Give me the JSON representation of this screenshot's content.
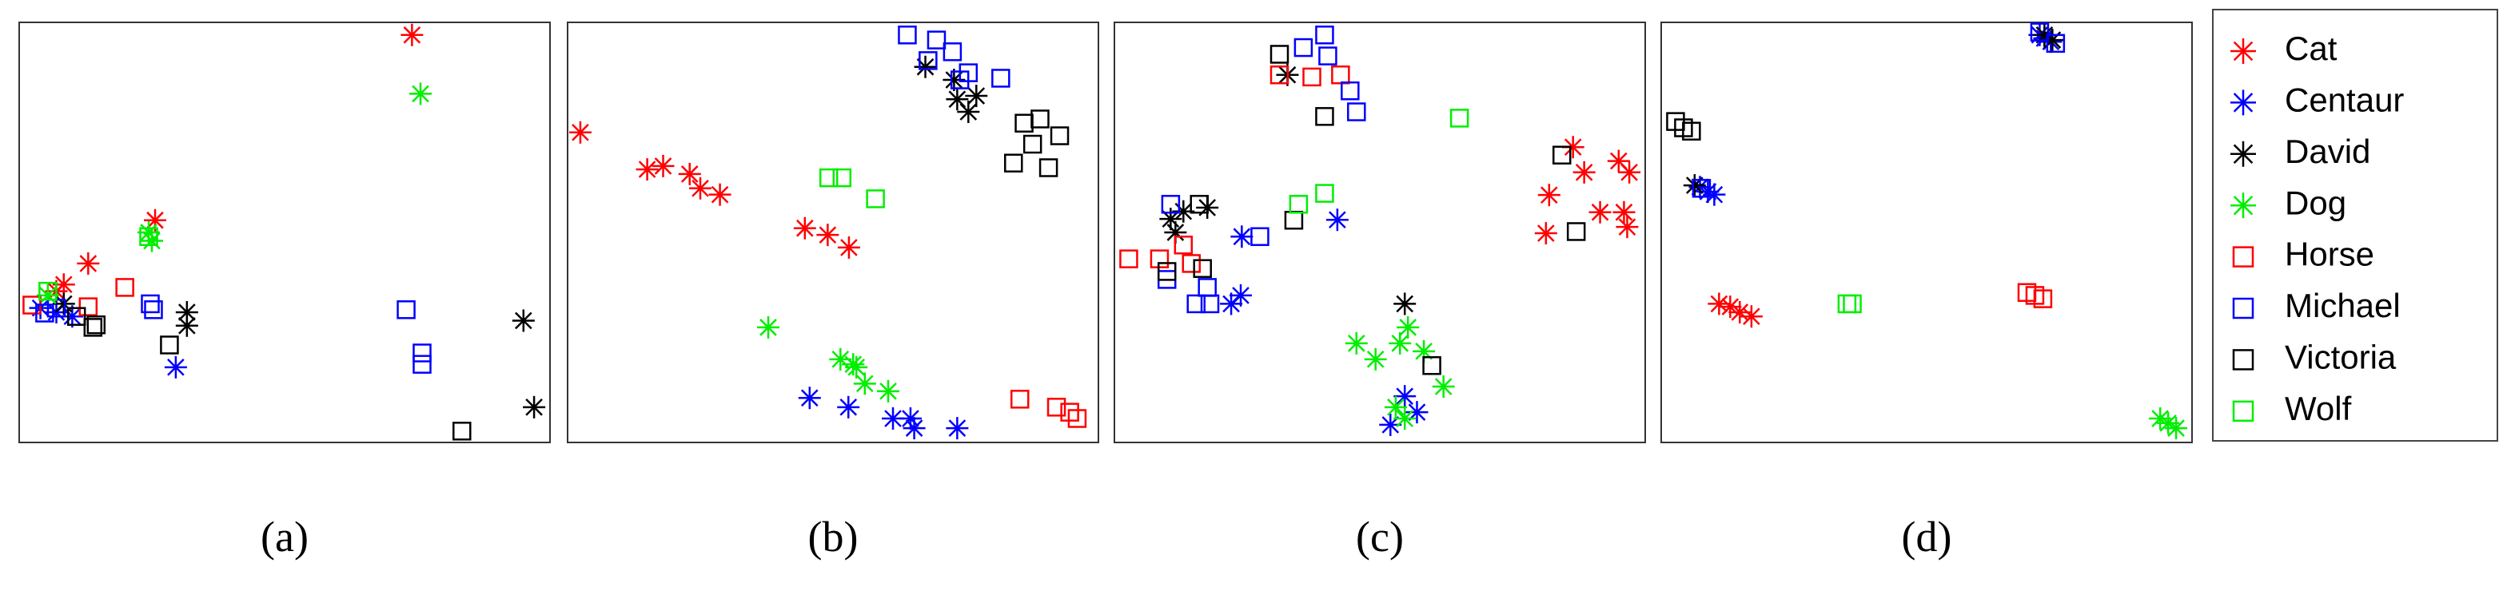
{
  "legend": [
    {
      "name": "Cat",
      "color": "#ff0000",
      "marker": "star"
    },
    {
      "name": "Centaur",
      "color": "#0000ff",
      "marker": "star"
    },
    {
      "name": "David",
      "color": "#000000",
      "marker": "star"
    },
    {
      "name": "Dog",
      "color": "#00ee00",
      "marker": "star"
    },
    {
      "name": "Horse",
      "color": "#ff0000",
      "marker": "square"
    },
    {
      "name": "Michael",
      "color": "#0000ff",
      "marker": "square"
    },
    {
      "name": "Victoria",
      "color": "#000000",
      "marker": "square"
    },
    {
      "name": "Wolf",
      "color": "#00ee00",
      "marker": "square"
    }
  ],
  "chart_data": [
    {
      "type": "scatter",
      "label": "(a)",
      "xlim": [
        0,
        100
      ],
      "ylim": [
        0,
        100
      ],
      "series": [
        {
          "x": [
            74,
            25.6,
            13,
            8.4,
            7
          ],
          "y": [
            97,
            52.9,
            42.6,
            37.6,
            36
          ]
        },
        {
          "x": [
            29.5,
            10,
            4,
            7
          ],
          "y": [
            17.9,
            30,
            32,
            31
          ]
        },
        {
          "x": [
            95,
            97,
            31.6,
            31.6,
            8.4
          ],
          "y": [
            29,
            8.4,
            31,
            27.8,
            33
          ]
        },
        {
          "x": [
            75.6,
            24.4,
            25,
            5.4
          ],
          "y": [
            83,
            50,
            48,
            35
          ]
        },
        {
          "x": [
            2.4,
            19.9,
            13
          ],
          "y": [
            32.7,
            36.9,
            32.3
          ]
        },
        {
          "x": [
            72.9,
            75.9,
            75.9,
            24.7,
            25.3,
            7,
            4.8
          ],
          "y": [
            31.6,
            21.3,
            18.6,
            33,
            31.6,
            32,
            30.8
          ]
        },
        {
          "x": [
            83.4,
            28.3,
            14.5,
            13.9,
            10.8
          ],
          "y": [
            2.7,
            23.2,
            28,
            27.4,
            30
          ]
        },
        {
          "x": [
            24.4,
            5.4
          ],
          "y": [
            49,
            36
          ]
        }
      ]
    },
    {
      "type": "scatter",
      "label": "(b)",
      "xlim": [
        0,
        100
      ],
      "ylim": [
        0,
        100
      ],
      "series": [
        {
          "x": [
            2.4,
            15,
            18,
            23,
            25,
            28.7,
            44.7,
            49,
            53
          ],
          "y": [
            73.8,
            65,
            65.8,
            63.9,
            60.5,
            59,
            51,
            49.4,
            46.4
          ]
        },
        {
          "x": [
            45.6,
            52.9,
            61.3,
            64.6,
            65.3,
            73.4
          ],
          "y": [
            10.6,
            8.4,
            5.7,
            5.7,
            3.4,
            3.4
          ]
        },
        {
          "x": [
            67.4,
            73.4,
            75.5,
            77,
            72.8
          ],
          "y": [
            89.4,
            81.7,
            78.7,
            82.5,
            86.3
          ]
        },
        {
          "x": [
            37.8,
            51.4,
            54.4,
            56,
            60.4,
            53.8
          ],
          "y": [
            27.4,
            19.8,
            17.9,
            14,
            12.2,
            18.6
          ]
        },
        {
          "x": [
            85.2,
            92.1,
            94.6,
            96
          ],
          "y": [
            10.3,
            8.4,
            7.2,
            5.7
          ]
        },
        {
          "x": [
            64,
            69.5,
            72.5,
            75.5,
            81.6,
            67.9,
            73.9
          ],
          "y": [
            97,
            95.8,
            93,
            88,
            86.7,
            90.9,
            86.3
          ]
        },
        {
          "x": [
            86,
            89,
            92.7,
            84,
            90.6,
            87.6
          ],
          "y": [
            76,
            77,
            73,
            66.5,
            65.4,
            71
          ]
        },
        {
          "x": [
            49.2,
            51.7,
            58
          ],
          "y": [
            63,
            63,
            58
          ]
        }
      ]
    },
    {
      "type": "scatter",
      "label": "(c)",
      "xlim": [
        0,
        100
      ],
      "ylim": [
        0,
        100
      ],
      "series": [
        {
          "x": [
            86.4,
            88.5,
            95,
            97,
            81.9,
            91.5,
            96,
            96.6,
            81.3
          ],
          "y": [
            70.3,
            64.3,
            67,
            64.3,
            58.9,
            54.8,
            54.8,
            51.3,
            49.8
          ]
        },
        {
          "x": [
            42,
            24,
            23.8,
            22,
            57,
            54.7,
            52
          ],
          "y": [
            53,
            49,
            35,
            33,
            7.2,
            11,
            4.2
          ]
        },
        {
          "x": [
            32.6,
            54.7,
            10.6,
            13,
            17.5,
            11.5
          ],
          "y": [
            87.5,
            33,
            53.2,
            55,
            55.9,
            50
          ]
        },
        {
          "x": [
            45.6,
            49.2,
            55.3,
            58.3,
            62,
            53,
            54.7,
            53.8
          ],
          "y": [
            23.6,
            19.8,
            27.4,
            21.7,
            13.3,
            8.4,
            5.7,
            23.6
          ]
        },
        {
          "x": [
            31.1,
            37.2,
            42.6,
            2.7,
            8.5,
            13,
            14.5
          ],
          "y": [
            87.5,
            87,
            87.5,
            43.7,
            43.7,
            47,
            42.6
          ]
        },
        {
          "x": [
            35.6,
            39.6,
            40.2,
            44.4,
            45.6,
            27.4,
            10.6,
            9.9,
            17.5,
            15.4,
            18
          ],
          "y": [
            94,
            97,
            92,
            83.7,
            78.7,
            49,
            56.7,
            38.8,
            36.9,
            33,
            33
          ]
        },
        {
          "x": [
            31.1,
            39.6,
            84.3,
            87,
            33.8,
            16,
            16.6,
            9.9,
            59.8
          ],
          "y": [
            92.4,
            77.6,
            68.4,
            50.2,
            52.9,
            56.7,
            41.4,
            40.7,
            18.3
          ]
        },
        {
          "x": [
            65,
            39.6,
            34.7
          ],
          "y": [
            77.2,
            59.3,
            56.7
          ]
        }
      ]
    },
    {
      "type": "scatter",
      "label": "(d)",
      "xlim": [
        0,
        100
      ],
      "ylim": [
        0,
        100
      ],
      "series": [
        {
          "x": [
            10.9,
            13,
            14.8,
            17
          ],
          "y": [
            33,
            32.3,
            31,
            30
          ]
        },
        {
          "x": [
            7.3,
            8.8,
            10,
            71.3,
            73.4,
            72.2
          ],
          "y": [
            60.8,
            59.7,
            59,
            97,
            95.4,
            96.2
          ]
        },
        {
          "x": [
            6.3,
            72.2,
            73.7
          ],
          "y": [
            61.2,
            97,
            95.8
          ]
        },
        {
          "x": [
            94,
            95.5,
            97
          ],
          "y": [
            5.7,
            4.6,
            3.4
          ]
        },
        {
          "x": [
            68.9,
            71.9,
            70.4
          ],
          "y": [
            35.7,
            34.2,
            35
          ]
        },
        {
          "x": [
            71.3,
            74.3,
            7.6
          ],
          "y": [
            97.7,
            95,
            60.5
          ]
        },
        {
          "x": [
            2.7,
            4.2,
            5.7
          ],
          "y": [
            76.4,
            74.9,
            74.1
          ]
        },
        {
          "x": [
            35,
            36
          ],
          "y": [
            33,
            33
          ]
        }
      ]
    }
  ]
}
